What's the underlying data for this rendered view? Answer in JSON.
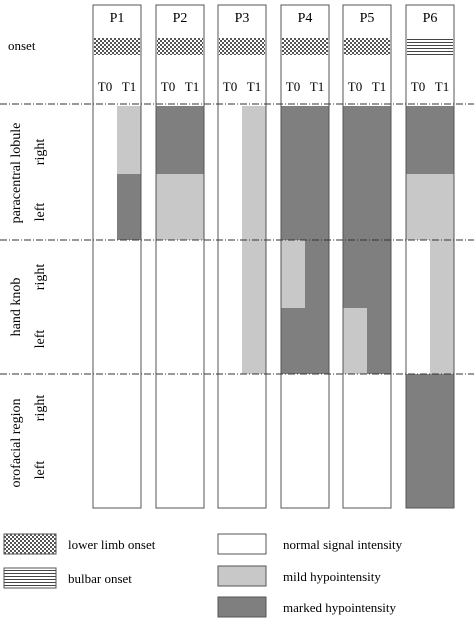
{
  "patients": [
    "P1",
    "P2",
    "P3",
    "P4",
    "P5",
    "P6"
  ],
  "time_labels": [
    "T0",
    "T1"
  ],
  "onset_label": "onset",
  "regions": [
    {
      "label": "paracentral lobule",
      "sides": [
        "right",
        "left"
      ]
    },
    {
      "label": "hand knob",
      "sides": [
        "right",
        "left"
      ]
    },
    {
      "label": "orofacial region",
      "sides": [
        "right",
        "left"
      ]
    }
  ],
  "onset_types": [
    "lower",
    "lower",
    "lower",
    "lower",
    "lower",
    "bulbar"
  ],
  "colors": {
    "normal": "#ffffff",
    "mild": "#c8c8c8",
    "marked": "#7f7f7f",
    "border": "#555555"
  },
  "chart_data": {
    "type": "heatmap",
    "scale": {
      "0": "normal signal intensity",
      "1": "mild hypointensity",
      "2": "marked hypointensity"
    },
    "note": "values indexed [patient][time T0/T1][row: paracentral-right, paracentral-left, handknob-right, handknob-left, orofacial-right, orofacial-left]",
    "values": {
      "P1": {
        "T0": [
          0,
          0,
          0,
          0,
          0,
          0
        ],
        "T1": [
          1,
          2,
          0,
          0,
          0,
          0
        ]
      },
      "P2": {
        "T0": [
          2,
          1,
          0,
          0,
          0,
          0
        ],
        "T1": [
          2,
          1,
          0,
          0,
          0,
          0
        ]
      },
      "P3": {
        "T0": [
          0,
          0,
          0,
          0,
          0,
          0
        ],
        "T1": [
          1,
          1,
          1,
          1,
          0,
          0
        ]
      },
      "P4": {
        "T0": [
          2,
          2,
          1,
          2,
          0,
          0
        ],
        "T1": [
          2,
          2,
          2,
          2,
          0,
          0
        ]
      },
      "P5": {
        "T0": [
          2,
          2,
          2,
          1,
          0,
          0
        ],
        "T1": [
          2,
          2,
          2,
          2,
          0,
          0
        ]
      },
      "P6": {
        "T0": [
          2,
          1,
          0,
          0,
          2,
          2
        ],
        "T1": [
          2,
          1,
          1,
          1,
          2,
          2
        ]
      }
    }
  },
  "legend": {
    "lower_limb_onset": "lower limb onset",
    "bulbar_onset": "bulbar onset",
    "normal": "normal signal intensity",
    "mild": "mild hypointensity",
    "marked": "marked hypointensity"
  }
}
